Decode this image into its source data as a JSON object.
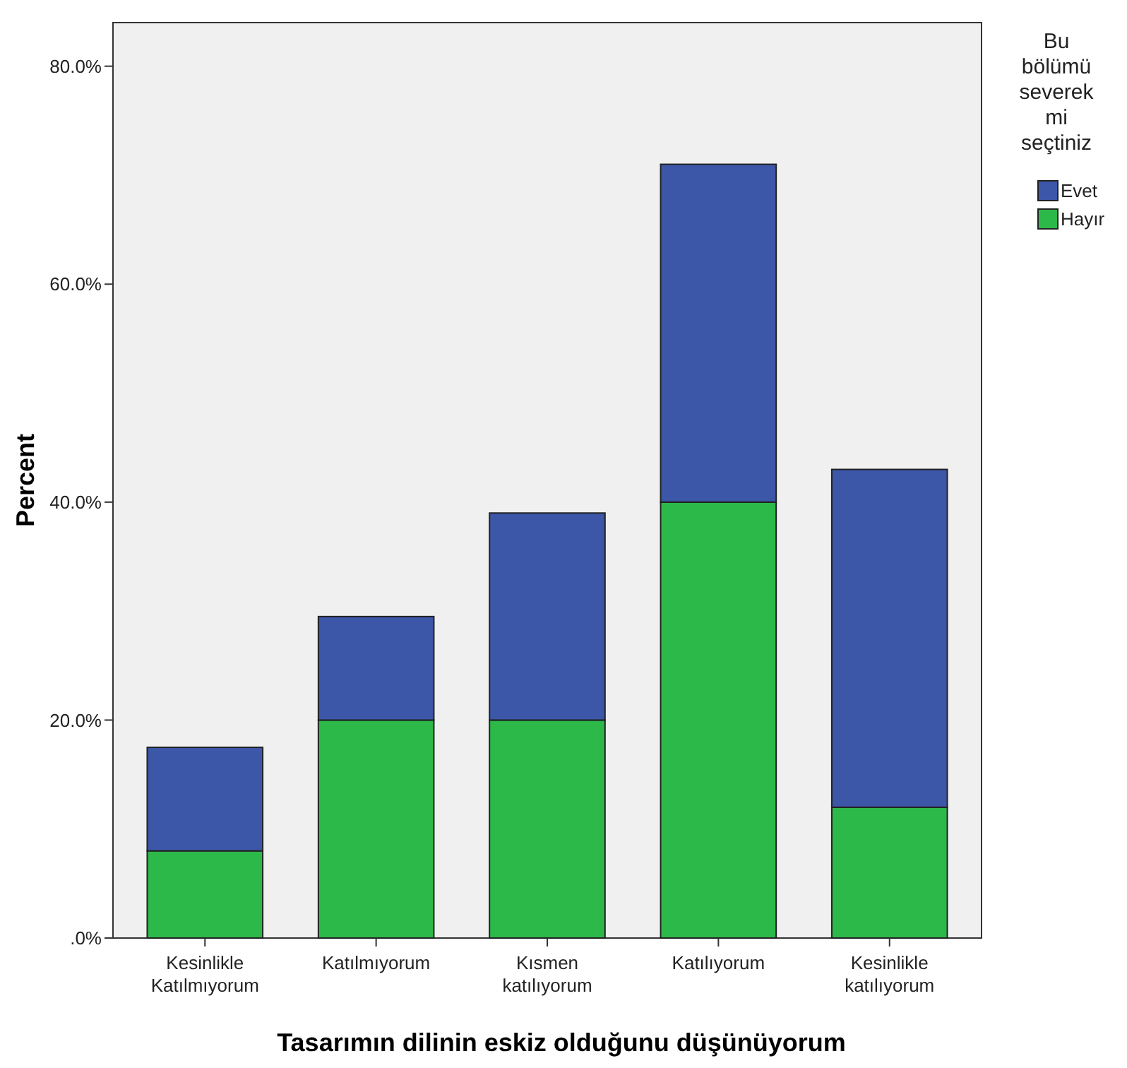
{
  "chart_data": {
    "type": "bar",
    "stacked": true,
    "xlabel": "Tasarımın dilinin eskiz olduğunu düşünüyorum",
    "ylabel": "Percent",
    "legend_title": "Bu bölümü severek mi seçtiniz",
    "legend": "right",
    "grid": false,
    "categories": [
      "Kesinlikle Katılmıyorum",
      "Katılmıyorum",
      "Kısmen katılıyorum",
      "Katılıyorum",
      "Kesinlikle katılıyorum"
    ],
    "series": [
      {
        "name": "Hayır",
        "color": "#2db84a",
        "values": [
          8,
          20,
          20,
          40,
          12
        ]
      },
      {
        "name": "Evet",
        "color": "#3c57a8",
        "values": [
          9.5,
          9.5,
          19,
          31,
          31
        ]
      }
    ],
    "ylim": [
      0,
      84
    ],
    "yticks": [
      {
        "value": 0,
        "label": ".0%"
      },
      {
        "value": 20,
        "label": "20.0%"
      },
      {
        "value": 40,
        "label": "40.0%"
      },
      {
        "value": 60,
        "label": "60.0%"
      },
      {
        "value": 80,
        "label": "80.0%"
      }
    ]
  }
}
